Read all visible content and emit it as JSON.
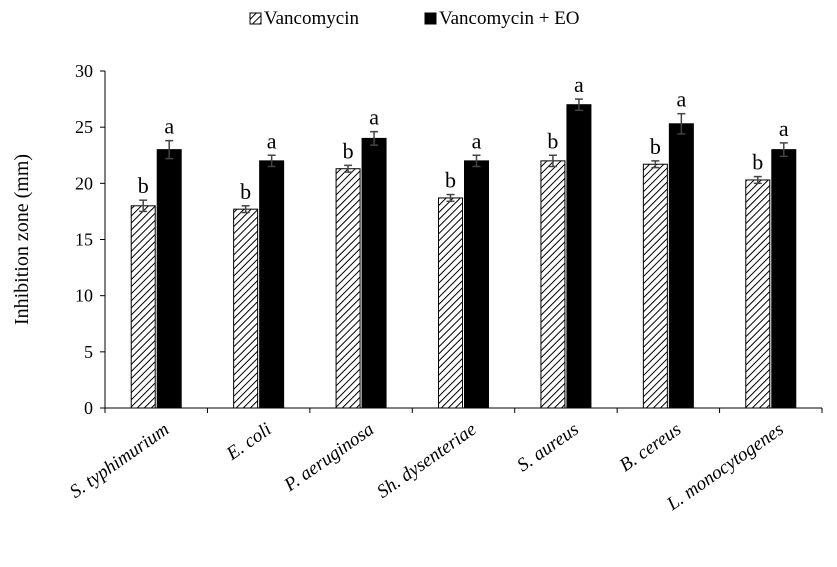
{
  "chart_data": {
    "type": "bar",
    "title": "",
    "xlabel": "",
    "ylabel": "Inhibition zone (mm)",
    "ylim": [
      0,
      30
    ],
    "yticks": [
      0,
      5,
      10,
      15,
      20,
      25,
      30
    ],
    "grid": false,
    "legend_position": "top-center",
    "categories": [
      "S. typhimurium",
      "E. coli",
      "P. aeruginosa",
      "Sh. dysenteriae",
      "S. aureus",
      "B. cereus",
      "L. monocytogenes"
    ],
    "series": [
      {
        "name": "Vancomycin",
        "pattern": "diagonal-hatch",
        "color": "#000000",
        "values": [
          18.0,
          17.7,
          21.3,
          18.7,
          22.0,
          21.7,
          20.3
        ],
        "errors": [
          0.5,
          0.3,
          0.3,
          0.3,
          0.5,
          0.3,
          0.3
        ],
        "letters": [
          "b",
          "b",
          "b",
          "b",
          "b",
          "b",
          "b"
        ]
      },
      {
        "name": "Vancomycin + EO",
        "pattern": "solid",
        "color": "#000000",
        "values": [
          23.0,
          22.0,
          24.0,
          22.0,
          27.0,
          25.3,
          23.0
        ],
        "errors": [
          0.8,
          0.5,
          0.6,
          0.5,
          0.5,
          0.9,
          0.6
        ],
        "letters": [
          "a",
          "a",
          "a",
          "a",
          "a",
          "a",
          "a"
        ]
      }
    ]
  }
}
